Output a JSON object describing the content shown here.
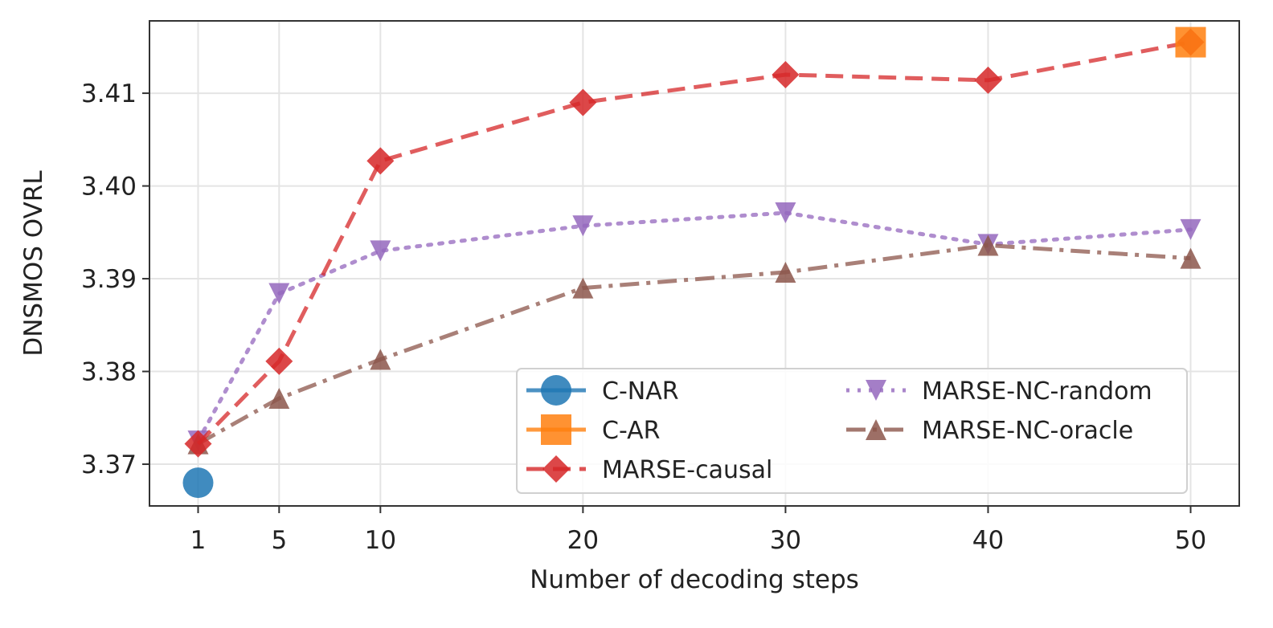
{
  "chart_data": {
    "type": "line",
    "title": "",
    "xlabel": "Number of decoding steps",
    "ylabel": "DNSMOS OVRL",
    "x_ticks": [
      1,
      5,
      10,
      20,
      30,
      40,
      50
    ],
    "x_tick_labels": [
      "1",
      "5",
      "10",
      "20",
      "30",
      "40",
      "50"
    ],
    "y_ticks": [
      3.37,
      3.38,
      3.39,
      3.4,
      3.41
    ],
    "y_tick_labels": [
      "3.37",
      "3.38",
      "3.39",
      "3.40",
      "3.41"
    ],
    "xlim": [
      -1.4,
      52.4
    ],
    "ylim": [
      3.3655,
      3.4178
    ],
    "grid": true,
    "legend": {
      "placement": "lower-right",
      "columns": 2
    },
    "series": [
      {
        "name": "C-NAR",
        "marker": "circle",
        "line": "solid",
        "color": "#1f77b4",
        "x": [
          1
        ],
        "y": [
          3.368
        ]
      },
      {
        "name": "C-AR",
        "marker": "square",
        "line": "solid",
        "color": "#ff7f0e",
        "x": [
          50
        ],
        "y": [
          3.4155
        ]
      },
      {
        "name": "MARSE-causal",
        "marker": "diamond",
        "line": "dashed",
        "color": "#d62728",
        "x": [
          1,
          5,
          10,
          20,
          30,
          40,
          50
        ],
        "y": [
          3.3722,
          3.3811,
          3.4027,
          3.409,
          3.412,
          3.4114,
          3.4155
        ]
      },
      {
        "name": "MARSE-NC-random",
        "marker": "triangle-down",
        "line": "dotted",
        "color": "#9467bd",
        "x": [
          1,
          5,
          10,
          20,
          30,
          40,
          50
        ],
        "y": [
          3.3725,
          3.3884,
          3.393,
          3.3957,
          3.3971,
          3.3937,
          3.3953
        ]
      },
      {
        "name": "MARSE-NC-oracle",
        "marker": "triangle-up",
        "line": "dashdot",
        "color": "#8c564b",
        "x": [
          1,
          5,
          10,
          20,
          30,
          40,
          50
        ],
        "y": [
          3.3722,
          3.3771,
          3.3813,
          3.389,
          3.3907,
          3.3936,
          3.3922
        ]
      }
    ]
  }
}
